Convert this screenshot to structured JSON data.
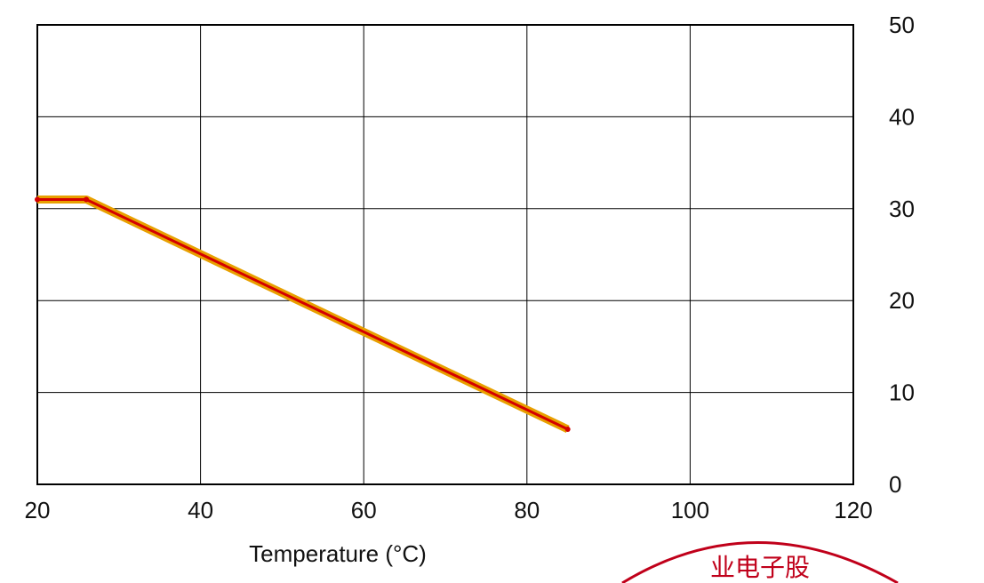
{
  "chart_data": {
    "type": "line",
    "xlabel": "Temperature (°C)",
    "ylabel": "",
    "x_ticks": [
      20,
      40,
      60,
      80,
      100,
      120
    ],
    "y_ticks": [
      0,
      10,
      20,
      30,
      40,
      50
    ],
    "xlim": [
      20,
      120
    ],
    "ylim": [
      0,
      50
    ],
    "series": [
      {
        "x": [
          20,
          26,
          85
        ],
        "y": [
          31,
          31,
          6
        ]
      }
    ],
    "grid": true,
    "legend": "none",
    "colors": {
      "line": "#e8a000",
      "line_core": "#d40000",
      "frame": "#000000",
      "grid": "#000000",
      "tick_text": "#111111"
    }
  },
  "watermark": {
    "text": "业电子股"
  }
}
